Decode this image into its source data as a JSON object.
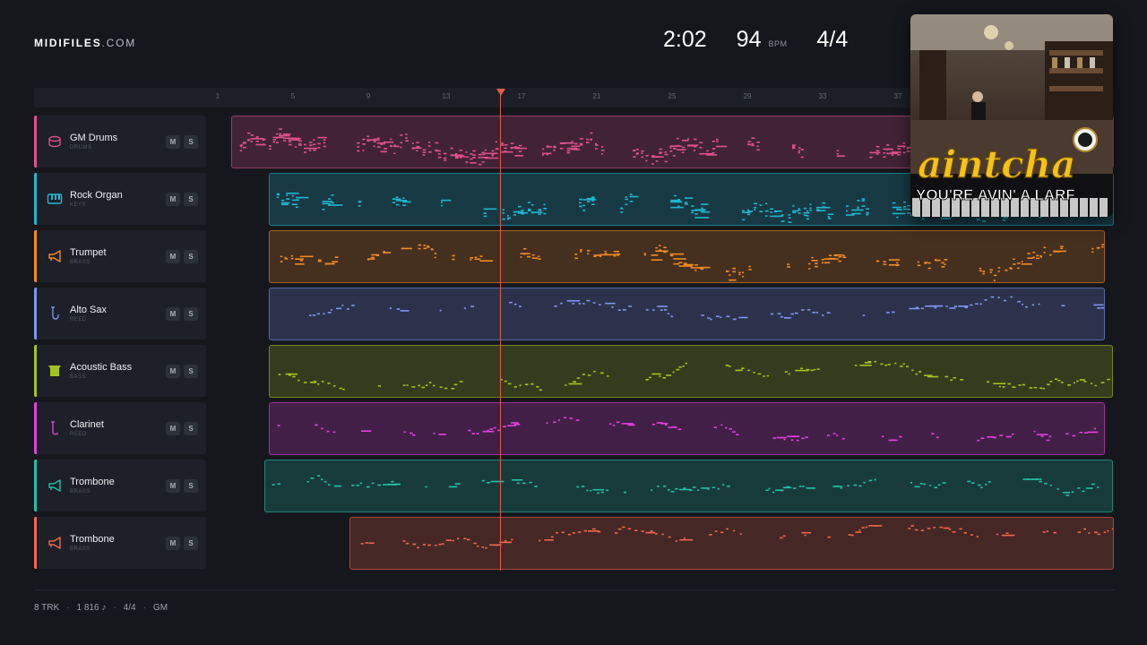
{
  "brand": {
    "name": "MIDIFILES",
    "tld": ".COM"
  },
  "stats": {
    "time": "2:02",
    "tempo": "94",
    "tempo_unit": "BPM",
    "time_signature": "4/4"
  },
  "cover": {
    "title": "aintcha",
    "subtitle": "YOU'RE AVIN' A LARF"
  },
  "ruler": {
    "ticks": [
      "1",
      "5",
      "9",
      "13",
      "17",
      "21",
      "25",
      "29",
      "33",
      "37"
    ]
  },
  "tracks": [
    {
      "name": "GM Drums",
      "category": "DRUMS",
      "icon": "drum-icon",
      "color": "#e0508e",
      "mute": "M",
      "solo": "S"
    },
    {
      "name": "Rock Organ",
      "category": "KEYS",
      "icon": "keyboard-icon",
      "color": "#1fb7d0",
      "mute": "M",
      "solo": "S"
    },
    {
      "name": "Trumpet",
      "category": "BRASS",
      "icon": "horn-icon",
      "color": "#f08a24",
      "mute": "M",
      "solo": "S"
    },
    {
      "name": "Alto Sax",
      "category": "REED",
      "icon": "sax-icon",
      "color": "#7f95f0",
      "mute": "M",
      "solo": "S"
    },
    {
      "name": "Acoustic Bass",
      "category": "BASS",
      "icon": "bass-icon",
      "color": "#a5c31f",
      "mute": "M",
      "solo": "S"
    },
    {
      "name": "Clarinet",
      "category": "REED",
      "icon": "clarinet-icon",
      "color": "#e33fe0",
      "mute": "M",
      "solo": "S"
    },
    {
      "name": "Trombone",
      "category": "BRASS",
      "icon": "horn-icon",
      "color": "#22c1a8",
      "mute": "M",
      "solo": "S"
    },
    {
      "name": "Trombone",
      "category": "BRASS",
      "icon": "horn-icon",
      "color": "#f0664a",
      "mute": "M",
      "solo": "S"
    }
  ],
  "footer": {
    "tracks": "8 TRK",
    "notes": "1 816 ♪",
    "signature": "4/4",
    "standard": "GM"
  }
}
